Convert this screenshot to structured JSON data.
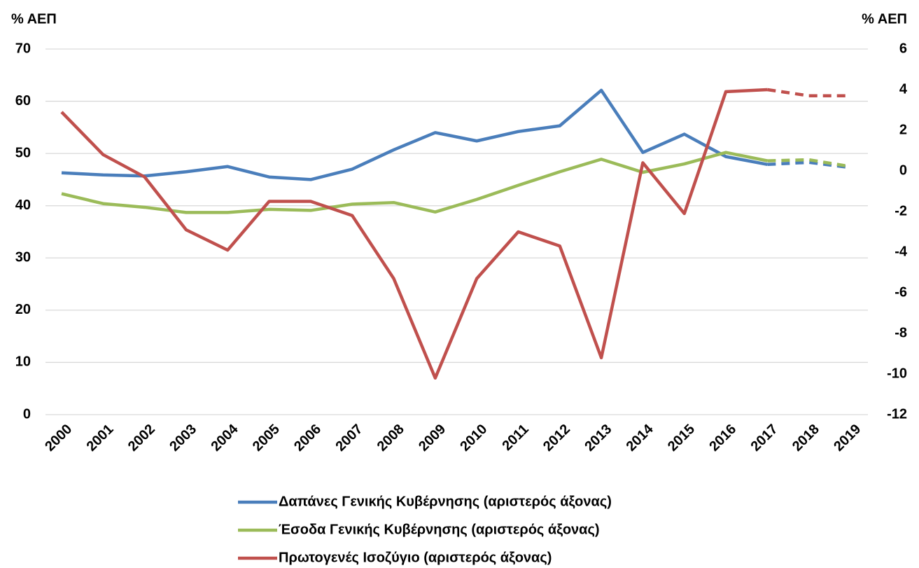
{
  "chart_data": {
    "type": "line",
    "y_label": "% ΑΕΠ",
    "y2_label": "% ΑΕΠ",
    "categories": [
      "2000",
      "2001",
      "2002",
      "2003",
      "2004",
      "2005",
      "2006",
      "2007",
      "2008",
      "2009",
      "2010",
      "2011",
      "2012",
      "2013",
      "2014",
      "2015",
      "2016",
      "2017",
      "2018",
      "2019"
    ],
    "dashed_from": "2017",
    "series": [
      {
        "name": "Δαπάνες Γενικής Κυβέρνησης (αριστερός άξονας)",
        "color": "#4a7ebb",
        "axis": "y",
        "values": [
          46.3,
          45.9,
          45.7,
          46.5,
          47.5,
          45.5,
          45.0,
          47.0,
          50.7,
          54.0,
          52.4,
          54.2,
          55.3,
          62.1,
          50.2,
          53.7,
          49.4,
          47.9,
          48.3,
          47.3
        ]
      },
      {
        "name": "Έσοδα Γενικής Κυβέρνησης (αριστερός άξονας)",
        "color": "#9bbb59",
        "axis": "y",
        "values": [
          42.3,
          40.4,
          39.7,
          38.7,
          38.7,
          39.3,
          39.1,
          40.3,
          40.6,
          38.8,
          41.2,
          43.9,
          46.5,
          48.9,
          46.4,
          48.0,
          50.2,
          48.6,
          48.8,
          47.5
        ]
      },
      {
        "name": "Πρωτογενές Ισοζύγιο (αριστερός άξονας)",
        "color": "#c0504d",
        "axis": "y2",
        "values": [
          2.9,
          0.8,
          -0.3,
          -2.9,
          -3.9,
          -1.5,
          -1.5,
          -2.2,
          -5.3,
          -10.2,
          -5.3,
          -3.0,
          -3.7,
          -9.2,
          0.4,
          -2.1,
          3.9,
          4.0,
          3.7,
          3.7
        ]
      }
    ],
    "ylim": [
      0,
      70
    ],
    "yticks": [
      0,
      10,
      20,
      30,
      40,
      50,
      60,
      70
    ],
    "y2lim": [
      -12,
      6
    ],
    "y2ticks": [
      -12,
      -10,
      -8,
      -6,
      -4,
      -2,
      0,
      2,
      4,
      6
    ],
    "grid": true,
    "legend": "bottom"
  }
}
